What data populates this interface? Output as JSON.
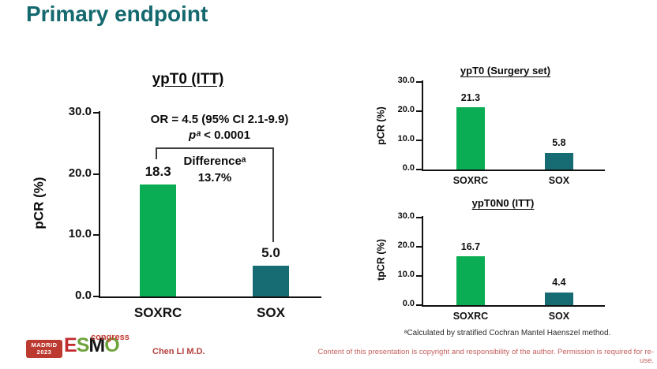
{
  "slide": {
    "title": "Primary endpoint"
  },
  "chart_data": [
    {
      "type": "bar",
      "title": "ypT0 (ITT)",
      "xlabel": "",
      "ylabel": "pCR (%)",
      "categories": [
        "SOXRC",
        "SOX"
      ],
      "values": [
        18.3,
        5.0
      ],
      "value_labels": [
        "18.3",
        "5.0"
      ],
      "bar_colors": [
        "#0aad53",
        "#176b72"
      ],
      "ylim": [
        0,
        30
      ],
      "yticks": [
        0,
        10,
        20,
        30
      ],
      "ytick_labels": [
        "0.0",
        "10.0",
        "20.0",
        "30.0"
      ],
      "grid": false,
      "annotations": {
        "or_text": "OR = 4.5 (95% CI 2.1-9.9)",
        "p_italic": "pᵃ",
        "p_rest": " < 0.0001",
        "difference_label": "Differenceᵃ",
        "difference_value": "13.7%"
      }
    },
    {
      "type": "bar",
      "title": "ypT0 (Surgery set)",
      "xlabel": "",
      "ylabel": "pCR (%)",
      "categories": [
        "SOXRC",
        "SOX"
      ],
      "values": [
        21.3,
        5.8
      ],
      "value_labels": [
        "21.3",
        "5.8"
      ],
      "bar_colors": [
        "#0aad53",
        "#176b72"
      ],
      "ylim": [
        0,
        30
      ],
      "yticks": [
        0,
        10,
        20,
        30
      ],
      "ytick_labels": [
        "0.0",
        "10.0",
        "20.0",
        "30.0"
      ],
      "grid": false
    },
    {
      "type": "bar",
      "title": "ypT0N0 (ITT)",
      "xlabel": "",
      "ylabel": "tpCR (%)",
      "categories": [
        "SOXRC",
        "SOX"
      ],
      "values": [
        16.7,
        4.4
      ],
      "value_labels": [
        "16.7",
        "4.4"
      ],
      "bar_colors": [
        "#0aad53",
        "#176b72"
      ],
      "ylim": [
        0,
        30
      ],
      "yticks": [
        0,
        10,
        20,
        30
      ],
      "ytick_labels": [
        "0.0",
        "10.0",
        "20.0",
        "30.0"
      ],
      "grid": false
    }
  ],
  "footnote": "ᵃCalculated by stratified Cochran Mantel Haenszel method.",
  "footer": {
    "logo_madrid": "MADRID",
    "logo_year": "2023",
    "logo_e": "E",
    "logo_s": "S",
    "logo_m": "M",
    "logo_o": "O",
    "logo_congress": "congress",
    "author": "Chen LI M.D.",
    "copyright": "Content of this presentation is copyright and responsibility of the author. Permission is required for re-use."
  },
  "colors": {
    "title_teal": "#14696e",
    "bar_green": "#0aad53",
    "bar_teal": "#176b72",
    "axis_black": "#111111",
    "footer_red": "#b5413f",
    "copyright_red": "#c4605e"
  }
}
